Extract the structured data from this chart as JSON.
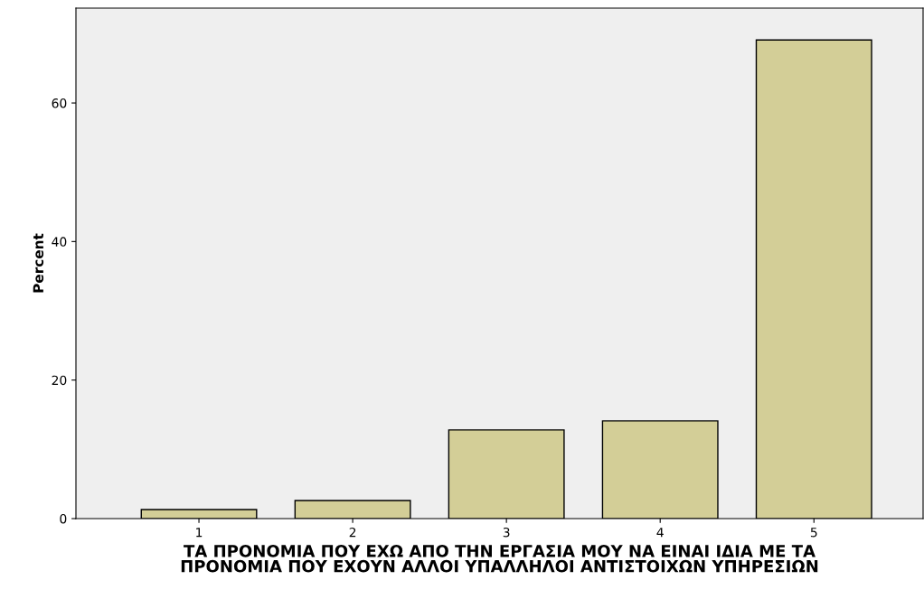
{
  "chart_data": {
    "type": "bar",
    "xlabel": "ΤΑ ΠΡΟΝΟΜΙΑ ΠΟΥ ΕΧΩ ΑΠΟ ΤΗΝ ΕΡΓΑΣΙΑ ΜΟΥ ΝΑ ΕΙΝΑΙ ΙΔΙΑ ΜΕ ΤΑ\nΠΡΟΝΟΜΙΑ ΠΟΥ ΕΧΟΥΝ ΑΛΛΟΙ ΥΠΑΛΛΗΛΟΙ ΑΝΤΙΣΤΟΙΧΩΝ ΥΠΗΡΕΣΙΩΝ",
    "ylabel": "Percent",
    "categories": [
      "1",
      "2",
      "3",
      "4",
      "5"
    ],
    "values": [
      1.3,
      2.6,
      12.8,
      14.1,
      69.1
    ],
    "color": "#d3ce97",
    "ylim": [
      0,
      73.7
    ],
    "yticks": [
      0,
      20,
      40,
      60
    ],
    "grid": false
  }
}
